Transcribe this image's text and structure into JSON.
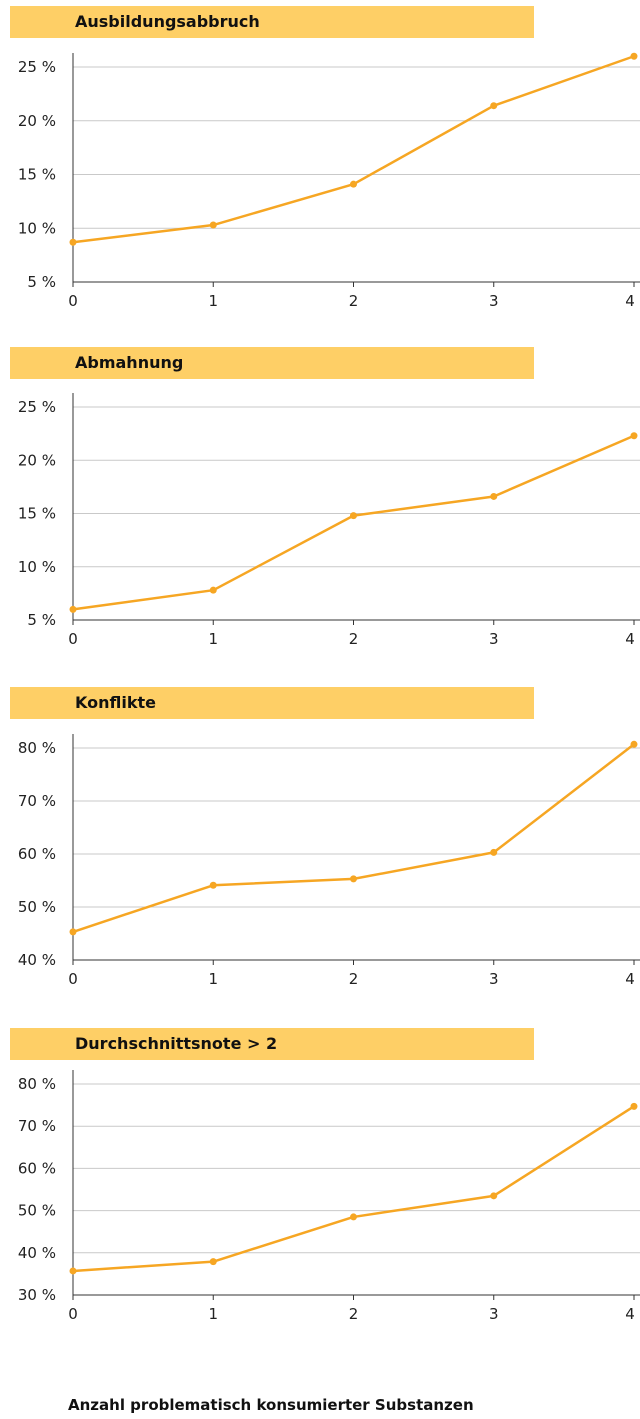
{
  "xlabel": "Anzahl problematisch konsumierter Substanzen",
  "accent_color": "#f6a623",
  "title_bar_color": "#fecf66",
  "chart_data": [
    {
      "type": "line",
      "title": "Ausbildungsabbruch",
      "x": [
        0,
        1,
        2,
        3,
        4
      ],
      "x_tick_labels": [
        "0",
        "1",
        "2",
        "3",
        "4"
      ],
      "values": [
        8.7,
        10.3,
        14.1,
        21.4,
        26.0
      ],
      "ylim": [
        5,
        25
      ],
      "y_ticks": [
        5,
        10,
        15,
        20,
        25
      ],
      "y_tick_labels": [
        "5 %",
        "10 %",
        "15 %",
        "20 %",
        "25 %"
      ],
      "grid": true
    },
    {
      "type": "line",
      "title": "Abmahnung",
      "x": [
        0,
        1,
        2,
        3,
        4
      ],
      "x_tick_labels": [
        "0",
        "1",
        "2",
        "3",
        "4"
      ],
      "values": [
        6.0,
        7.8,
        14.8,
        16.6,
        22.3
      ],
      "ylim": [
        5,
        25
      ],
      "y_ticks": [
        5,
        10,
        15,
        20,
        25
      ],
      "y_tick_labels": [
        "5 %",
        "10 %",
        "15 %",
        "20 %",
        "25 %"
      ],
      "grid": true
    },
    {
      "type": "line",
      "title": "Konflikte",
      "x": [
        0,
        1,
        2,
        3,
        4
      ],
      "x_tick_labels": [
        "0",
        "1",
        "2",
        "3",
        "4"
      ],
      "values": [
        45.3,
        54.1,
        55.3,
        60.3,
        80.7
      ],
      "ylim": [
        40,
        80
      ],
      "y_ticks": [
        40,
        50,
        60,
        70,
        80
      ],
      "y_tick_labels": [
        "40 %",
        "50 %",
        "60 %",
        "70 %",
        "80 %"
      ],
      "grid": true
    },
    {
      "type": "line",
      "title": "Durchschnittsnote > 2",
      "x": [
        0,
        1,
        2,
        3,
        4
      ],
      "x_tick_labels": [
        "0",
        "1",
        "2",
        "3",
        "4"
      ],
      "values": [
        35.7,
        37.9,
        48.5,
        53.5,
        74.7
      ],
      "ylim": [
        30,
        80
      ],
      "y_ticks": [
        30,
        40,
        50,
        60,
        70,
        80
      ],
      "y_tick_labels": [
        "30 %",
        "40 %",
        "50 %",
        "60 %",
        "70 %",
        "80 %"
      ],
      "grid": true
    }
  ]
}
